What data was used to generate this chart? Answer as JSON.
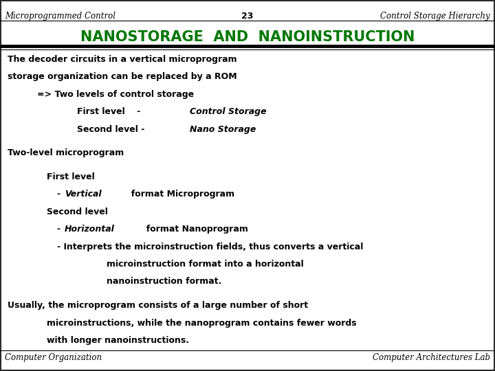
{
  "header_left": "Microprogrammed Control",
  "header_center": "23",
  "header_right": "Control Storage Hierarchy",
  "title": "NANOSTORAGE  AND  NANOINSTRUCTION",
  "title_color": "#007700",
  "background_color": "#ffffff",
  "border_color": "#000000",
  "footer_left": "Computer Organization",
  "footer_right": "Computer Architectures Lab"
}
